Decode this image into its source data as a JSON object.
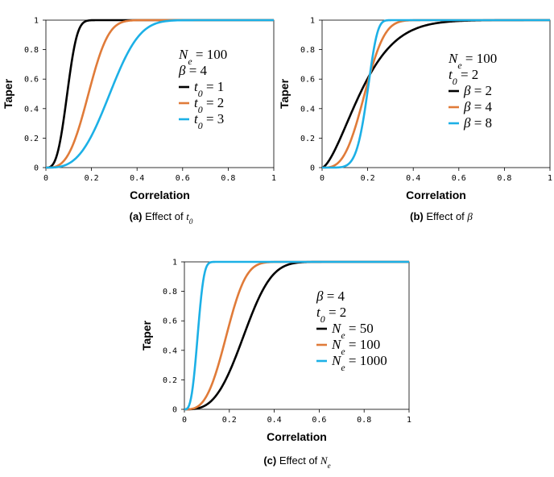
{
  "chart_data": [
    {
      "id": "a",
      "type": "line",
      "caption_label": "(a)",
      "caption_text": "Effect of",
      "caption_symbol": "t",
      "caption_sub": "0",
      "xlabel": "Correlation",
      "ylabel": "Taper",
      "xlim": [
        0,
        1
      ],
      "ylim": [
        0,
        1
      ],
      "x_ticks": [
        "0",
        "0.2",
        "0.4",
        "0.6",
        "0.8",
        "1"
      ],
      "y_ticks": [
        "0",
        "0.2",
        "0.4",
        "0.6",
        "0.8",
        "1"
      ],
      "legend_params": [
        "N_e = 100",
        "β = 4"
      ],
      "legend_params_display": [
        {
          "sym": "N",
          "sub": "e",
          "rest": " = 100"
        },
        {
          "sym": "β",
          "sub": "",
          "rest": " = 4"
        }
      ],
      "series": [
        {
          "name": "t0 = 1",
          "sym": "t",
          "sub": "0",
          "rest": " = 1",
          "color": "#000000",
          "Ne": 100,
          "beta": 4,
          "t0": 1
        },
        {
          "name": "t0 = 2",
          "sym": "t",
          "sub": "0",
          "rest": " = 2",
          "color": "#E07B39",
          "Ne": 100,
          "beta": 4,
          "t0": 2
        },
        {
          "name": "t0 = 3",
          "sym": "t",
          "sub": "0",
          "rest": " = 3",
          "color": "#1CB0E6",
          "Ne": 100,
          "beta": 4,
          "t0": 3
        }
      ]
    },
    {
      "id": "b",
      "type": "line",
      "caption_label": "(b)",
      "caption_text": "Effect of",
      "caption_symbol": "β",
      "caption_sub": "",
      "xlabel": "Correlation",
      "ylabel": "Taper",
      "xlim": [
        0,
        1
      ],
      "ylim": [
        0,
        1
      ],
      "x_ticks": [
        "0",
        "0.2",
        "0.4",
        "0.6",
        "0.8",
        "1"
      ],
      "y_ticks": [
        "0",
        "0.2",
        "0.4",
        "0.6",
        "0.8",
        "1"
      ],
      "legend_params": [
        "N_e = 100",
        "t0 = 2"
      ],
      "legend_params_display": [
        {
          "sym": "N",
          "sub": "e",
          "rest": " = 100"
        },
        {
          "sym": "t",
          "sub": "0",
          "rest": " = 2"
        }
      ],
      "series": [
        {
          "name": "β = 2",
          "sym": "β",
          "sub": "",
          "rest": " = 2",
          "color": "#000000",
          "Ne": 100,
          "beta": 2,
          "t0": 2
        },
        {
          "name": "β = 4",
          "sym": "β",
          "sub": "",
          "rest": " = 4",
          "color": "#E07B39",
          "Ne": 100,
          "beta": 4,
          "t0": 2
        },
        {
          "name": "β = 8",
          "sym": "β",
          "sub": "",
          "rest": " = 8",
          "color": "#1CB0E6",
          "Ne": 100,
          "beta": 8,
          "t0": 2
        }
      ]
    },
    {
      "id": "c",
      "type": "line",
      "caption_label": "(c)",
      "caption_text": "Effect of",
      "caption_symbol": "N",
      "caption_sub": "e",
      "xlabel": "Correlation",
      "ylabel": "Taper",
      "xlim": [
        0,
        1
      ],
      "ylim": [
        0,
        1
      ],
      "x_ticks": [
        "0",
        "0.2",
        "0.4",
        "0.6",
        "0.8",
        "1"
      ],
      "y_ticks": [
        "0",
        "0.2",
        "0.4",
        "0.6",
        "0.8",
        "1"
      ],
      "legend_params": [
        "β = 4",
        "t0 = 2"
      ],
      "legend_params_display": [
        {
          "sym": "β",
          "sub": "",
          "rest": " = 4"
        },
        {
          "sym": "t",
          "sub": "0",
          "rest": " = 2"
        }
      ],
      "series": [
        {
          "name": "N_e = 50",
          "sym": "N",
          "sub": "e",
          "rest": " = 50",
          "color": "#000000",
          "Ne": 50,
          "beta": 4,
          "t0": 2
        },
        {
          "name": "N_e = 100",
          "sym": "N",
          "sub": "e",
          "rest": " = 100",
          "color": "#E07B39",
          "Ne": 100,
          "beta": 4,
          "t0": 2
        },
        {
          "name": "N_e = 1000",
          "sym": "N",
          "sub": "e",
          "rest": " = 1000",
          "color": "#1CB0E6",
          "Ne": 1000,
          "beta": 4,
          "t0": 2
        }
      ]
    }
  ]
}
